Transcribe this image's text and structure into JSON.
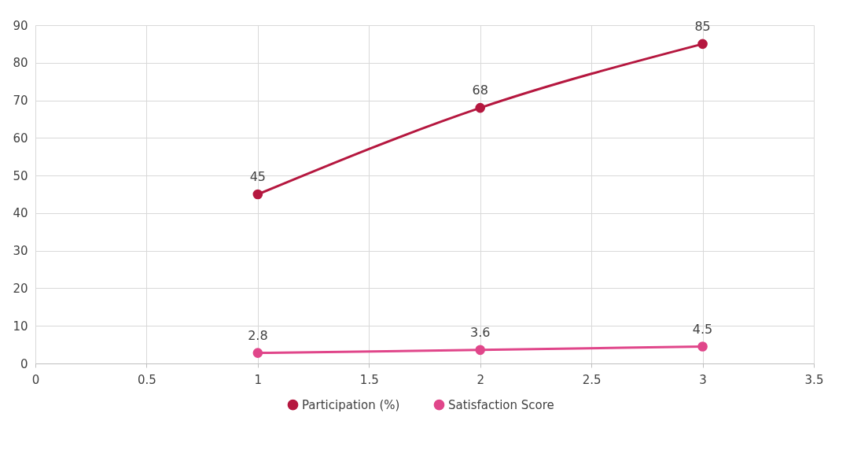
{
  "chart_data": {
    "type": "line",
    "categories": [
      "0",
      "0.5",
      "1",
      "1.5",
      "2",
      "2.5",
      "3",
      "3.5"
    ],
    "series": [
      {
        "name": "Participation (%)",
        "color": "#b5173f",
        "x": [
          "1",
          "2",
          "3"
        ],
        "values": [
          45,
          68,
          85
        ]
      },
      {
        "name": "Satisfaction Score",
        "color": "#e0468a",
        "x": [
          "1",
          "2",
          "3"
        ],
        "values": [
          2.8,
          3.6,
          4.5
        ]
      }
    ],
    "ylim": [
      0,
      90
    ],
    "yticks": [
      0,
      10,
      20,
      30,
      40,
      50,
      60,
      70,
      80,
      90
    ],
    "grid": true,
    "legend": "bottom",
    "marker": "circle",
    "line_style": "solid",
    "data_labels": true
  }
}
